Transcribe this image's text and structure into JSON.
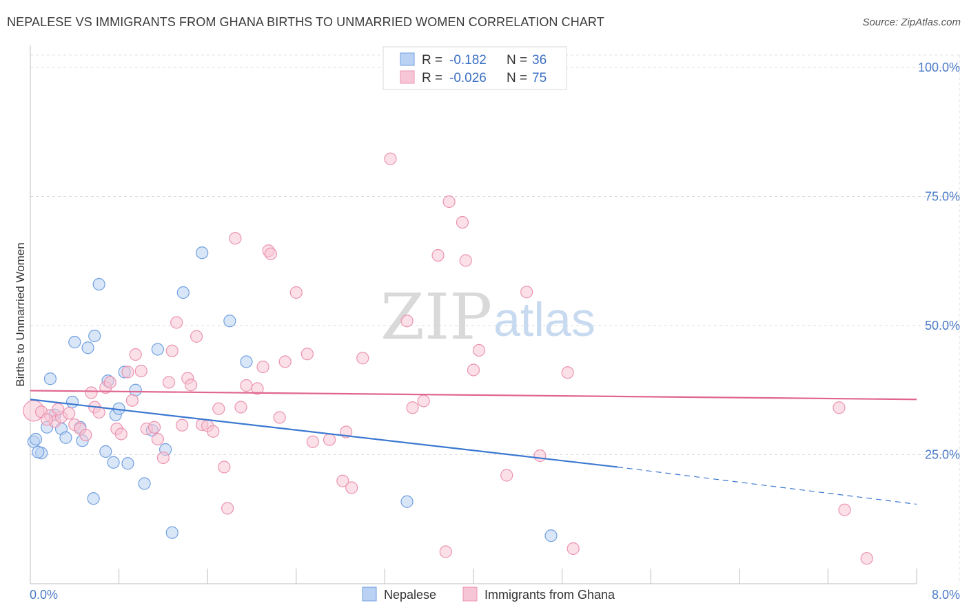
{
  "title": "NEPALESE VS IMMIGRANTS FROM GHANA BIRTHS TO UNMARRIED WOMEN CORRELATION CHART",
  "source": "Source: ZipAtlas.com",
  "watermark": {
    "zip": "ZIP",
    "atlas": "atlas"
  },
  "chart_data": {
    "type": "scatter",
    "ylabel": "Births to Unmarried Women",
    "xlim": [
      0,
      8.0
    ],
    "ylim": [
      0,
      100
    ],
    "x_tick_labels": [
      {
        "value": 0,
        "label": "0.0%"
      },
      {
        "value": 8.0,
        "label": "8.0%"
      }
    ],
    "y_tick_labels": [
      {
        "value": 25,
        "label": "25.0%"
      },
      {
        "value": 50,
        "label": "50.0%"
      },
      {
        "value": 75,
        "label": "75.0%"
      },
      {
        "value": 100,
        "label": "100.0%"
      }
    ],
    "grid": true,
    "legend": {
      "placement": "top-center",
      "rows": [
        {
          "r_label": "R =",
          "r_value": "-0.182",
          "n_label": "N =",
          "n_value": "36"
        },
        {
          "r_label": "R =",
          "r_value": "-0.026",
          "n_label": "N =",
          "n_value": "75"
        }
      ]
    },
    "series": [
      {
        "name": "Nepalese",
        "color": "#6f9fe0",
        "fill": "#b9d1f3",
        "line_color": "#3b78d0",
        "trend": {
          "x0": 0.0,
          "y0": 35.7,
          "x1": 5.3,
          "y1": 22.6,
          "dash_x1": 8.0,
          "dash_y1": 15.4
        },
        "points": [
          [
            0.03,
            27.5
          ],
          [
            0.05,
            28.0
          ],
          [
            0.1,
            25.3
          ],
          [
            0.15,
            30.3
          ],
          [
            0.18,
            39.7
          ],
          [
            0.22,
            32.7
          ],
          [
            0.28,
            30.0
          ],
          [
            0.32,
            28.3
          ],
          [
            0.38,
            35.2
          ],
          [
            0.4,
            46.8
          ],
          [
            0.45,
            30.3
          ],
          [
            0.47,
            27.7
          ],
          [
            0.52,
            45.7
          ],
          [
            0.57,
            16.5
          ],
          [
            0.58,
            48.0
          ],
          [
            0.62,
            58.0
          ],
          [
            0.68,
            25.6
          ],
          [
            0.7,
            39.3
          ],
          [
            0.75,
            23.5
          ],
          [
            0.77,
            32.7
          ],
          [
            0.8,
            33.9
          ],
          [
            0.85,
            41.0
          ],
          [
            0.88,
            23.3
          ],
          [
            0.95,
            37.5
          ],
          [
            1.03,
            19.4
          ],
          [
            1.1,
            29.7
          ],
          [
            1.15,
            45.4
          ],
          [
            1.22,
            26.0
          ],
          [
            1.28,
            9.9
          ],
          [
            1.38,
            56.4
          ],
          [
            1.55,
            64.1
          ],
          [
            1.8,
            50.9
          ],
          [
            1.95,
            43.0
          ],
          [
            3.4,
            15.9
          ],
          [
            4.7,
            9.3
          ],
          [
            0.07,
            25.5
          ]
        ]
      },
      {
        "name": "Immigrants from Ghana",
        "color": "#eb92b0",
        "fill": "#f7c6d6",
        "line_color": "#e06690",
        "trend": {
          "x0": 0.0,
          "y0": 37.4,
          "x1": 8.0,
          "y1": 35.7
        },
        "points": [
          [
            0.03,
            33.5
          ],
          [
            0.1,
            33.3
          ],
          [
            0.18,
            32.6
          ],
          [
            0.22,
            31.4
          ],
          [
            0.28,
            32.3
          ],
          [
            0.35,
            33.0
          ],
          [
            0.4,
            30.8
          ],
          [
            0.45,
            30.0
          ],
          [
            0.5,
            28.8
          ],
          [
            0.55,
            37.0
          ],
          [
            0.58,
            34.2
          ],
          [
            0.62,
            33.2
          ],
          [
            0.68,
            38.0
          ],
          [
            0.72,
            39.0
          ],
          [
            0.78,
            30.0
          ],
          [
            0.82,
            29.0
          ],
          [
            0.88,
            41.0
          ],
          [
            0.92,
            35.5
          ],
          [
            0.95,
            44.4
          ],
          [
            1.0,
            41.2
          ],
          [
            1.05,
            30.0
          ],
          [
            1.12,
            30.3
          ],
          [
            1.15,
            28.0
          ],
          [
            1.2,
            24.4
          ],
          [
            1.25,
            39.0
          ],
          [
            1.28,
            45.1
          ],
          [
            1.32,
            50.6
          ],
          [
            1.37,
            30.7
          ],
          [
            1.42,
            39.8
          ],
          [
            1.45,
            38.5
          ],
          [
            1.5,
            47.9
          ],
          [
            1.55,
            30.8
          ],
          [
            1.6,
            30.6
          ],
          [
            1.65,
            29.5
          ],
          [
            1.7,
            33.9
          ],
          [
            1.75,
            22.6
          ],
          [
            1.78,
            14.6
          ],
          [
            1.85,
            66.9
          ],
          [
            1.9,
            34.2
          ],
          [
            1.95,
            38.4
          ],
          [
            2.05,
            37.8
          ],
          [
            2.1,
            42.0
          ],
          [
            2.15,
            64.5
          ],
          [
            2.17,
            63.9
          ],
          [
            2.25,
            32.2
          ],
          [
            2.3,
            43.0
          ],
          [
            2.4,
            56.4
          ],
          [
            2.5,
            44.5
          ],
          [
            2.55,
            27.5
          ],
          [
            2.7,
            27.9
          ],
          [
            2.82,
            19.9
          ],
          [
            2.85,
            29.4
          ],
          [
            2.9,
            18.6
          ],
          [
            3.0,
            43.7
          ],
          [
            3.25,
            82.3
          ],
          [
            3.4,
            50.9
          ],
          [
            3.45,
            34.1
          ],
          [
            3.55,
            35.4
          ],
          [
            3.68,
            63.6
          ],
          [
            3.75,
            6.2
          ],
          [
            3.78,
            74.0
          ],
          [
            3.9,
            70.0
          ],
          [
            3.93,
            62.6
          ],
          [
            4.0,
            41.4
          ],
          [
            4.05,
            45.2
          ],
          [
            4.3,
            21.0
          ],
          [
            4.48,
            56.5
          ],
          [
            4.6,
            24.8
          ],
          [
            4.85,
            40.9
          ],
          [
            4.9,
            6.8
          ],
          [
            7.3,
            34.1
          ],
          [
            7.35,
            14.3
          ],
          [
            7.55,
            4.9
          ],
          [
            0.25,
            33.8
          ],
          [
            0.15,
            31.8
          ]
        ]
      }
    ]
  }
}
